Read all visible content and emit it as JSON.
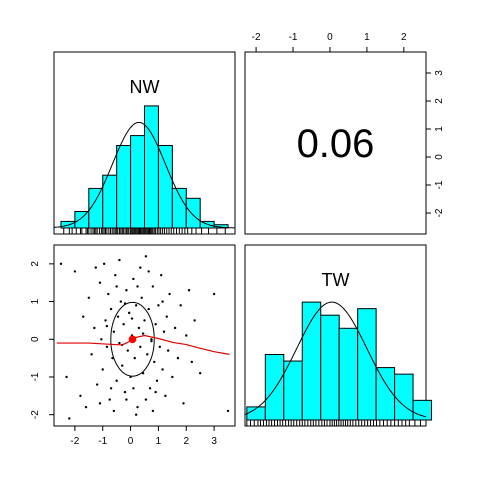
{
  "chart_data": {
    "type": "scatterplot-matrix",
    "variables": [
      "NW",
      "TW"
    ],
    "correlation": {
      "label": "0.06",
      "value": 0.06
    },
    "axis": {
      "xlim": [
        -2.75,
        3.75
      ],
      "ylim": [
        -2.3,
        2.5
      ],
      "bottom_ticks": [
        {
          "value": -2,
          "label": "-2"
        },
        {
          "value": -1,
          "label": "-1"
        },
        {
          "value": 0,
          "label": "0"
        },
        {
          "value": 1,
          "label": "1"
        },
        {
          "value": 2,
          "label": "2"
        },
        {
          "value": 3,
          "label": "3"
        }
      ],
      "left_ticks": [
        {
          "value": -2,
          "label": "-2"
        },
        {
          "value": -1,
          "label": "-1"
        },
        {
          "value": 0,
          "label": "0"
        },
        {
          "value": 1,
          "label": "1"
        },
        {
          "value": 2,
          "label": "2"
        }
      ],
      "top_xlim": [
        -2.3,
        2.6
      ],
      "top_ticks": [
        {
          "value": -2,
          "label": "-2"
        },
        {
          "value": -1,
          "label": "-1"
        },
        {
          "value": 0,
          "label": "0"
        },
        {
          "value": 1,
          "label": "1"
        },
        {
          "value": 2,
          "label": "2"
        }
      ],
      "right_ylim": [
        -2.75,
        3.75
      ],
      "right_ticks": [
        {
          "value": -2,
          "label": "-2"
        },
        {
          "value": -1,
          "label": "-1"
        },
        {
          "value": 0,
          "label": "0"
        },
        {
          "value": 1,
          "label": "1"
        },
        {
          "value": 2,
          "label": "2"
        },
        {
          "value": 3,
          "label": "3"
        }
      ]
    },
    "histograms": {
      "NW": {
        "xlim": [
          -2.75,
          3.75
        ],
        "break_start": -2.5,
        "break_width": 0.5,
        "counts": [
          2,
          5,
          12,
          16,
          25,
          28,
          37,
          25,
          12,
          9,
          2,
          1
        ],
        "count_max": 40,
        "density_curve": {
          "mean": 0.3,
          "sd": 0.95,
          "peak_count": 32
        },
        "rug": [
          -2.4,
          -2.2,
          -2.1,
          -1.95,
          -1.8,
          -1.75,
          -1.6,
          -1.55,
          -1.5,
          -1.42,
          -1.35,
          -1.3,
          -1.25,
          -1.2,
          -1.12,
          -1.05,
          -1.0,
          -0.95,
          -0.9,
          -0.85,
          -0.78,
          -0.72,
          -0.66,
          -0.6,
          -0.55,
          -0.5,
          -0.46,
          -0.4,
          -0.35,
          -0.3,
          -0.26,
          -0.2,
          -0.15,
          -0.1,
          -0.06,
          0.0,
          0.04,
          0.08,
          0.12,
          0.16,
          0.2,
          0.24,
          0.28,
          0.32,
          0.36,
          0.4,
          0.44,
          0.48,
          0.52,
          0.56,
          0.6,
          0.64,
          0.68,
          0.72,
          0.76,
          0.8,
          0.85,
          0.9,
          0.96,
          1.02,
          1.08,
          1.15,
          1.22,
          1.3,
          1.38,
          1.46,
          1.55,
          1.65,
          1.75,
          1.85,
          1.95,
          2.05,
          2.2,
          2.35,
          2.55,
          2.8,
          3.1,
          3.4
        ]
      },
      "TW": {
        "xlim": [
          -2.3,
          2.6
        ],
        "break_start": -2.25,
        "break_width": 0.5,
        "counts": [
          2,
          10,
          9,
          18,
          16,
          14,
          17,
          8,
          7,
          3
        ],
        "count_max": 20,
        "density_curve": {
          "mean": 0.05,
          "sd": 0.95,
          "peak_count": 18
        },
        "rug": [
          -2.25,
          -2.15,
          -2.05,
          -1.95,
          -1.88,
          -1.8,
          -1.72,
          -1.65,
          -1.58,
          -1.5,
          -1.42,
          -1.35,
          -1.28,
          -1.2,
          -1.12,
          -1.05,
          -0.98,
          -0.9,
          -0.82,
          -0.75,
          -0.68,
          -0.6,
          -0.52,
          -0.45,
          -0.38,
          -0.3,
          -0.22,
          -0.15,
          -0.08,
          0.0,
          0.06,
          0.12,
          0.18,
          0.24,
          0.3,
          0.36,
          0.42,
          0.48,
          0.55,
          0.62,
          0.7,
          0.78,
          0.86,
          0.94,
          1.02,
          1.1,
          1.18,
          1.26,
          1.35,
          1.45,
          1.55,
          1.65,
          1.75,
          1.85,
          1.95,
          2.05,
          2.15,
          2.3,
          2.45
        ]
      }
    },
    "scatter": {
      "x_variable": "NW",
      "y_variable": "TW",
      "points": [
        [
          -2.5,
          2.0
        ],
        [
          -2.0,
          1.8
        ],
        [
          -1.8,
          -1.5
        ],
        [
          -2.3,
          -1.0
        ],
        [
          -1.7,
          0.6
        ],
        [
          -1.5,
          1.1
        ],
        [
          -1.4,
          -0.4
        ],
        [
          -1.3,
          0.3
        ],
        [
          -1.2,
          -1.2
        ],
        [
          -1.1,
          1.5
        ],
        [
          -1.05,
          0.0
        ],
        [
          -1.0,
          -0.8
        ],
        [
          -0.95,
          2.0
        ],
        [
          -0.9,
          0.5
        ],
        [
          -0.85,
          -0.2
        ],
        [
          -0.8,
          1.2
        ],
        [
          -0.75,
          -1.6
        ],
        [
          -0.7,
          0.8
        ],
        [
          -0.65,
          -0.5
        ],
        [
          -0.6,
          0.2
        ],
        [
          -0.55,
          1.7
        ],
        [
          -0.5,
          -1.1
        ],
        [
          -0.45,
          0.6
        ],
        [
          -0.4,
          -0.1
        ],
        [
          -0.35,
          1.0
        ],
        [
          -0.3,
          -0.7
        ],
        [
          -0.25,
          0.4
        ],
        [
          -0.2,
          -1.4
        ],
        [
          -0.15,
          1.3
        ],
        [
          -0.1,
          -0.3
        ],
        [
          -0.05,
          0.7
        ],
        [
          0.0,
          -1.0
        ],
        [
          0.05,
          0.1
        ],
        [
          0.1,
          1.6
        ],
        [
          0.15,
          -0.5
        ],
        [
          0.2,
          0.9
        ],
        [
          0.25,
          -1.8
        ],
        [
          0.3,
          0.3
        ],
        [
          0.35,
          -0.2
        ],
        [
          0.4,
          1.1
        ],
        [
          0.45,
          -0.9
        ],
        [
          0.5,
          0.5
        ],
        [
          0.55,
          2.2
        ],
        [
          0.6,
          -0.4
        ],
        [
          0.65,
          0.8
        ],
        [
          0.7,
          -1.3
        ],
        [
          0.75,
          0.0
        ],
        [
          0.8,
          1.4
        ],
        [
          0.85,
          -0.6
        ],
        [
          0.9,
          0.4
        ],
        [
          0.95,
          -1.1
        ],
        [
          1.0,
          0.9
        ],
        [
          1.05,
          -0.2
        ],
        [
          1.1,
          1.7
        ],
        [
          1.15,
          -0.8
        ],
        [
          1.2,
          0.2
        ],
        [
          1.25,
          -1.5
        ],
        [
          1.3,
          0.6
        ],
        [
          1.35,
          -0.3
        ],
        [
          1.4,
          1.2
        ],
        [
          1.5,
          -1.0
        ],
        [
          1.6,
          0.3
        ],
        [
          1.7,
          -0.5
        ],
        [
          1.8,
          0.9
        ],
        [
          1.9,
          -1.7
        ],
        [
          2.0,
          0.1
        ],
        [
          2.1,
          1.3
        ],
        [
          2.2,
          -0.6
        ],
        [
          2.3,
          0.5
        ],
        [
          2.5,
          -0.9
        ],
        [
          3.0,
          1.2
        ],
        [
          3.5,
          -1.9
        ],
        [
          -1.6,
          -1.8
        ],
        [
          -1.1,
          -1.7
        ],
        [
          -0.6,
          -1.9
        ],
        [
          0.2,
          -2.0
        ],
        [
          0.8,
          -1.9
        ],
        [
          -2.2,
          -2.1
        ],
        [
          -0.4,
          2.1
        ],
        [
          0.35,
          1.9
        ],
        [
          -1.25,
          1.9
        ],
        [
          0.65,
          1.8
        ],
        [
          -0.15,
          -1.6
        ],
        [
          0.55,
          -1.6
        ],
        [
          -0.7,
          -1.3
        ],
        [
          0.1,
          -1.3
        ],
        [
          0.9,
          -1.4
        ],
        [
          -0.5,
          1.4
        ],
        [
          0.25,
          1.4
        ],
        [
          1.15,
          1.0
        ],
        [
          -0.2,
          0.95
        ],
        [
          0.45,
          0.15
        ],
        [
          -0.3,
          -0.15
        ],
        [
          0.75,
          -0.05
        ],
        [
          -0.85,
          0.35
        ],
        [
          0.05,
          0.55
        ]
      ],
      "loess": [
        [
          -2.65,
          -0.1
        ],
        [
          -1.5,
          -0.1
        ],
        [
          -0.8,
          -0.13
        ],
        [
          -0.3,
          -0.15
        ],
        [
          0.0,
          -0.05
        ],
        [
          0.2,
          0.05
        ],
        [
          0.5,
          0.1
        ],
        [
          1.0,
          0.02
        ],
        [
          1.5,
          -0.08
        ],
        [
          2.0,
          -0.14
        ],
        [
          2.5,
          -0.24
        ],
        [
          3.0,
          -0.33
        ],
        [
          3.55,
          -0.4
        ]
      ],
      "center": [
        0.07,
        0.0
      ],
      "ellipse": {
        "cx": 0.07,
        "cy": 0.0,
        "rx": 0.78,
        "ry": 0.98
      }
    }
  }
}
